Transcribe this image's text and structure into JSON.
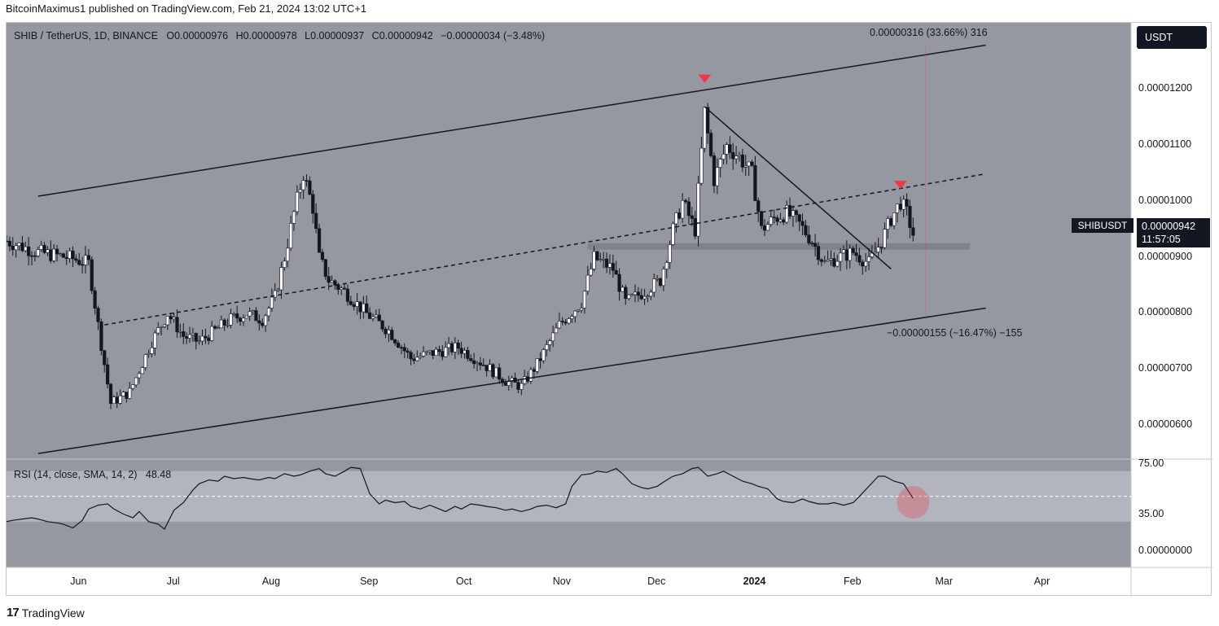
{
  "header": {
    "publisher_line": "BitcoinMaximus1 published on TradingView.com, Feb 21, 2024 13:02 UTC+1"
  },
  "footer": {
    "brand": "TradingView",
    "logo_mark": "17"
  },
  "legend": {
    "symbol": "SHIB / TetherUS, 1D, BINANCE",
    "open_key": "O",
    "open": "0.00000976",
    "high_key": "H",
    "high": "0.00000978",
    "low_key": "L",
    "low": "0.00000937",
    "close_key": "C",
    "close": "0.00000942",
    "change": "−0.00000034 (−3.48%)"
  },
  "rsi_legend": {
    "label": "RSI (14, close, SMA, 14, 2)",
    "value": "48.48"
  },
  "currency_button": "USDT",
  "symbol_tag": "SHIBUSDT",
  "price_tag": {
    "price": "0.00000942",
    "countdown": "11:57:05"
  },
  "annotations": {
    "upper_measure": "0.00000316 (33.66%) 316",
    "lower_measure": "−0.00000155 (−16.47%) −155"
  },
  "colors": {
    "pane_bg": "#9598a1",
    "rsi_band": "#b2b5be",
    "candle": "#ffffff",
    "line": "#131722",
    "marker": "#f23645",
    "dark": "#131722"
  },
  "chart_data": [
    {
      "type": "candlestick",
      "symbol": "SHIB / TetherUS",
      "interval": "1D",
      "exchange": "BINANCE",
      "price_axis_ticks": [
        "0.00001200",
        "0.00001100",
        "0.00001000",
        "0.00000900",
        "0.00000800",
        "0.00000700",
        "0.00000600"
      ],
      "price_values": [
        1.2e-05,
        1.1e-05,
        1e-05,
        9e-06,
        8e-06,
        7e-06,
        6e-06
      ],
      "x_axis_ticks": [
        "Jun",
        "Jul",
        "Aug",
        "Sep",
        "Oct",
        "Nov",
        "Dec",
        "2024",
        "Feb",
        "Mar",
        "Apr"
      ],
      "x_axis_bold": "2024",
      "ylim": [
        5.4e-06,
        1.32e-05
      ],
      "x_days_range": [
        "2023-05-10",
        "2024-04-30"
      ],
      "price_path": [
        [
          "2023-05-10",
          9.3e-06
        ],
        [
          "2023-05-20",
          9.1e-06
        ],
        [
          "2023-05-30",
          9e-06
        ],
        [
          "2023-06-05",
          8.9e-06
        ],
        [
          "2023-06-08",
          7.8e-06
        ],
        [
          "2023-06-10",
          7.1e-06
        ],
        [
          "2023-06-12",
          6.4e-06
        ],
        [
          "2023-06-18",
          6.6e-06
        ],
        [
          "2023-06-25",
          7.5e-06
        ],
        [
          "2023-06-30",
          8e-06
        ],
        [
          "2023-07-05",
          7.6e-06
        ],
        [
          "2023-07-10",
          7.5e-06
        ],
        [
          "2023-07-15",
          7.7e-06
        ],
        [
          "2023-07-20",
          7.9e-06
        ],
        [
          "2023-07-25",
          8e-06
        ],
        [
          "2023-07-30",
          7.9e-06
        ],
        [
          "2023-08-03",
          8.3e-06
        ],
        [
          "2023-08-06",
          9e-06
        ],
        [
          "2023-08-09",
          9.8e-06
        ],
        [
          "2023-08-12",
          1.05e-05
        ],
        [
          "2023-08-15",
          9.9e-06
        ],
        [
          "2023-08-17",
          9e-06
        ],
        [
          "2023-08-20",
          8.6e-06
        ],
        [
          "2023-08-25",
          8.4e-06
        ],
        [
          "2023-09-01",
          8e-06
        ],
        [
          "2023-09-08",
          7.7e-06
        ],
        [
          "2023-09-15",
          7.2e-06
        ],
        [
          "2023-09-22",
          7.3e-06
        ],
        [
          "2023-09-30",
          7.4e-06
        ],
        [
          "2023-10-08",
          7.1e-06
        ],
        [
          "2023-10-15",
          6.8e-06
        ],
        [
          "2023-10-20",
          6.7e-06
        ],
        [
          "2023-10-25",
          7.1e-06
        ],
        [
          "2023-11-01",
          7.8e-06
        ],
        [
          "2023-11-08",
          8.2e-06
        ],
        [
          "2023-11-12",
          9e-06
        ],
        [
          "2023-11-18",
          8.8e-06
        ],
        [
          "2023-11-22",
          8.2e-06
        ],
        [
          "2023-11-28",
          8.4e-06
        ],
        [
          "2023-12-03",
          8.6e-06
        ],
        [
          "2023-12-07",
          9.5e-06
        ],
        [
          "2023-12-10",
          1e-05
        ],
        [
          "2023-12-14",
          9.5e-06
        ],
        [
          "2023-12-17",
          1.16e-05
        ],
        [
          "2023-12-20",
          1.04e-05
        ],
        [
          "2023-12-24",
          1.1e-05
        ],
        [
          "2023-12-28",
          1.08e-05
        ],
        [
          "2024-01-01",
          1.05e-05
        ],
        [
          "2024-01-04",
          9.5e-06
        ],
        [
          "2024-01-08",
          9.7e-06
        ],
        [
          "2024-01-12",
          9.8e-06
        ],
        [
          "2024-01-16",
          9.6e-06
        ],
        [
          "2024-01-20",
          9.3e-06
        ],
        [
          "2024-01-24",
          8.9e-06
        ],
        [
          "2024-01-28",
          9e-06
        ],
        [
          "2024-02-02",
          9.1e-06
        ],
        [
          "2024-02-07",
          8.9e-06
        ],
        [
          "2024-02-11",
          9.3e-06
        ],
        [
          "2024-02-14",
          9.7e-06
        ],
        [
          "2024-02-17",
          1e-05
        ],
        [
          "2024-02-19",
          9.8e-06
        ],
        [
          "2024-02-21",
          9.42e-06
        ]
      ],
      "ascending_channel": {
        "upper": [
          [
            "2023-05-20",
            1.01e-05
          ],
          [
            "2024-03-15",
            1.28e-05
          ]
        ],
        "middle": [
          [
            "2023-06-10",
            7.8e-06
          ],
          [
            "2024-03-15",
            1.05e-05
          ]
        ],
        "lower": [
          [
            "2023-05-20",
            5.5e-06
          ],
          [
            "2024-03-15",
            8.1e-06
          ]
        ]
      },
      "descending_trendline": [
        [
          "2023-12-17",
          1.17e-05
        ],
        [
          "2024-02-14",
          8.8e-06
        ]
      ],
      "horizontal_zone": {
        "from": "2023-11-10",
        "to": "2024-03-10",
        "price": 9.2e-06
      },
      "sell_markers": [
        {
          "date": "2023-12-17",
          "price": 1.21e-05
        },
        {
          "date": "2024-02-17",
          "price": 1.02e-05
        }
      ]
    },
    {
      "type": "line",
      "name": "RSI (14, close, SMA, 14, 2)",
      "latest": 48.48,
      "y_axis_ticks": [
        "75.00",
        "35.00"
      ],
      "band": [
        30,
        70
      ],
      "midline": 50,
      "x_range_dates": [
        "2023-05-10",
        "2024-02-21"
      ],
      "values": [
        30,
        31,
        32,
        33,
        32,
        30,
        29,
        28,
        25,
        31,
        40,
        43,
        44,
        40,
        36,
        33,
        38,
        30,
        28,
        24,
        39,
        45,
        55,
        60,
        63,
        62,
        66,
        64,
        65,
        64,
        63,
        65,
        64,
        68,
        66,
        67,
        70,
        72,
        68,
        66,
        70,
        73,
        72,
        52,
        44,
        47,
        45,
        46,
        42,
        40,
        43,
        41,
        38,
        42,
        40,
        44,
        43,
        42,
        41,
        39,
        40,
        38,
        40,
        42,
        43,
        41,
        44,
        58,
        67,
        68,
        70,
        69,
        72,
        68,
        60,
        57,
        56,
        58,
        63,
        66,
        68,
        72,
        73,
        66,
        68,
        70,
        66,
        62,
        60,
        58,
        56,
        48,
        46,
        45,
        48,
        46,
        44,
        44,
        45,
        43,
        45,
        50,
        58,
        66,
        66,
        62,
        60,
        48.48
      ]
    }
  ]
}
